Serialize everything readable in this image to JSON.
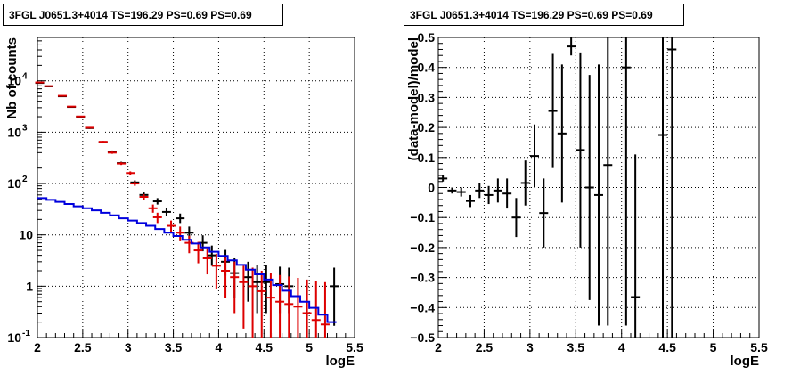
{
  "chart_data": [
    {
      "type": "scatter",
      "title": "3FGL J0651.3+4014 TS=196.29 PS=0.69 PS=0.69",
      "xlabel": "logE",
      "ylabel": "Nb of counts",
      "xlim": [
        2,
        5.5
      ],
      "ylim": [
        0.1,
        70000
      ],
      "yscale": "log",
      "grid": true,
      "x_ticks": [
        "2",
        "2.5",
        "3",
        "3.5",
        "4",
        "4.5",
        "5",
        "5.5"
      ],
      "y_ticks": [
        {
          "value": 0.1,
          "label": "10^-1"
        },
        {
          "value": 1,
          "label": "1"
        },
        {
          "value": 10,
          "label": "10"
        },
        {
          "value": 100,
          "label": "10^2"
        },
        {
          "value": 1000,
          "label": "10^3"
        },
        {
          "value": 10000,
          "label": "10^4"
        }
      ],
      "series": [
        {
          "style": "points",
          "color": "#000000",
          "points": [
            {
              "x": 2.025,
              "y": 9100,
              "lo": 8950,
              "hi": 9250
            },
            {
              "x": 2.125,
              "y": 7800,
              "lo": 7650,
              "hi": 7950
            },
            {
              "x": 2.275,
              "y": 5000,
              "lo": 4880,
              "hi": 5120
            },
            {
              "x": 2.375,
              "y": 3100,
              "lo": 3030,
              "hi": 3170
            },
            {
              "x": 2.475,
              "y": 2000,
              "lo": 1950,
              "hi": 2050
            },
            {
              "x": 2.575,
              "y": 1200,
              "lo": 1160,
              "hi": 1240
            },
            {
              "x": 2.725,
              "y": 640,
              "lo": 615,
              "hi": 665
            },
            {
              "x": 2.825,
              "y": 420,
              "lo": 400,
              "hi": 440
            },
            {
              "x": 2.925,
              "y": 250,
              "lo": 235,
              "hi": 265
            },
            {
              "x": 3.075,
              "y": 105,
              "lo": 95,
              "hi": 115
            },
            {
              "x": 3.175,
              "y": 60,
              "lo": 53,
              "hi": 67
            },
            {
              "x": 3.325,
              "y": 45,
              "lo": 39,
              "hi": 52
            },
            {
              "x": 3.425,
              "y": 28,
              "lo": 23,
              "hi": 34
            },
            {
              "x": 3.575,
              "y": 21,
              "lo": 17,
              "hi": 26
            },
            {
              "x": 3.675,
              "y": 11,
              "lo": 8,
              "hi": 14.5
            },
            {
              "x": 3.825,
              "y": 7,
              "lo": 4.8,
              "hi": 9.8
            },
            {
              "x": 3.925,
              "y": 4,
              "lo": 2.5,
              "hi": 6.2
            },
            {
              "x": 4.075,
              "y": 3,
              "lo": 1.6,
              "hi": 5.1
            },
            {
              "x": 4.175,
              "y": 1.8,
              "lo": 0.6,
              "hi": 3.5
            },
            {
              "x": 4.325,
              "y": 1.5,
              "lo": 0.5,
              "hi": 3.0
            },
            {
              "x": 4.425,
              "y": 1.2,
              "lo": 0.3,
              "hi": 2.6
            },
            {
              "x": 4.525,
              "y": 1.2,
              "lo": 0.3,
              "hi": 2.6
            },
            {
              "x": 4.675,
              "y": 1.1,
              "lo": 0.3,
              "hi": 2.4
            },
            {
              "x": 4.775,
              "y": 1.0,
              "lo": 0.3,
              "hi": 2.3
            },
            {
              "x": 5.275,
              "y": 1.0,
              "lo": 0.17,
              "hi": 2.3
            }
          ]
        },
        {
          "style": "points",
          "color": "#dd0000",
          "points": [
            {
              "x": 2.025,
              "y": 9300,
              "lo": 9150,
              "hi": 9450
            },
            {
              "x": 2.125,
              "y": 7900,
              "lo": 7750,
              "hi": 8050
            },
            {
              "x": 2.275,
              "y": 5100,
              "lo": 4980,
              "hi": 5220
            },
            {
              "x": 2.375,
              "y": 3150,
              "lo": 3080,
              "hi": 3220
            },
            {
              "x": 2.475,
              "y": 2020,
              "lo": 1970,
              "hi": 2070
            },
            {
              "x": 2.575,
              "y": 1220,
              "lo": 1180,
              "hi": 1260
            },
            {
              "x": 2.725,
              "y": 650,
              "lo": 625,
              "hi": 675
            },
            {
              "x": 2.825,
              "y": 400,
              "lo": 380,
              "hi": 420
            },
            {
              "x": 2.925,
              "y": 245,
              "lo": 230,
              "hi": 260
            },
            {
              "x": 3.025,
              "y": 160,
              "lo": 148,
              "hi": 172
            },
            {
              "x": 3.075,
              "y": 100,
              "lo": 90,
              "hi": 110
            },
            {
              "x": 3.175,
              "y": 55,
              "lo": 48,
              "hi": 62
            },
            {
              "x": 3.275,
              "y": 33,
              "lo": 27,
              "hi": 39
            },
            {
              "x": 3.325,
              "y": 22,
              "lo": 17,
              "hi": 27
            },
            {
              "x": 3.475,
              "y": 15,
              "lo": 11,
              "hi": 19
            },
            {
              "x": 3.575,
              "y": 11,
              "lo": 7.5,
              "hi": 14.5
            },
            {
              "x": 3.675,
              "y": 7,
              "lo": 4.4,
              "hi": 9.6
            },
            {
              "x": 3.775,
              "y": 5,
              "lo": 2.8,
              "hi": 7.3
            },
            {
              "x": 3.875,
              "y": 3.5,
              "lo": 1.7,
              "hi": 5.5
            },
            {
              "x": 3.975,
              "y": 2.5,
              "lo": 0.9,
              "hi": 4.3
            },
            {
              "x": 4.075,
              "y": 2.0,
              "lo": 0.6,
              "hi": 3.6
            },
            {
              "x": 4.175,
              "y": 1.5,
              "lo": 0.3,
              "hi": 3.0
            },
            {
              "x": 4.275,
              "y": 1.2,
              "lo": 0.15,
              "hi": 2.5
            },
            {
              "x": 4.375,
              "y": 1.0,
              "lo": 0.1,
              "hi": 2.3
            },
            {
              "x": 4.475,
              "y": 0.8,
              "lo": 0.1,
              "hi": 2.0
            },
            {
              "x": 4.575,
              "y": 0.6,
              "lo": 0.1,
              "hi": 1.8
            },
            {
              "x": 4.675,
              "y": 0.5,
              "lo": 0.1,
              "hi": 1.65
            },
            {
              "x": 4.775,
              "y": 0.45,
              "lo": 0.1,
              "hi": 1.55
            },
            {
              "x": 4.875,
              "y": 0.4,
              "lo": 0.1,
              "hi": 1.45
            },
            {
              "x": 4.975,
              "y": 0.3,
              "lo": 0.1,
              "hi": 1.35
            },
            {
              "x": 5.075,
              "y": 0.22,
              "lo": 0.1,
              "hi": 1.25
            },
            {
              "x": 5.175,
              "y": 0.18,
              "lo": 0.1,
              "hi": 1.2
            }
          ]
        },
        {
          "style": "step",
          "color": "#0000dd",
          "bins": [
            2.0,
            2.1,
            2.2,
            2.3,
            2.4,
            2.5,
            2.6,
            2.7,
            2.8,
            2.9,
            3.0,
            3.1,
            3.2,
            3.3,
            3.4,
            3.5,
            3.6,
            3.7,
            3.8,
            3.9,
            4.0,
            4.1,
            4.2,
            4.3,
            4.4,
            4.5,
            4.6,
            4.7,
            4.8,
            4.9,
            5.0,
            5.1,
            5.2,
            5.3
          ],
          "values": [
            52,
            48,
            44,
            40,
            36,
            33,
            30,
            27,
            24,
            21,
            19,
            17,
            15,
            13,
            11,
            9.5,
            8,
            6.8,
            5.7,
            4.7,
            3.9,
            3.2,
            2.6,
            2.1,
            1.7,
            1.35,
            1.05,
            0.82,
            0.64,
            0.5,
            0.38,
            0.28,
            0.2
          ]
        }
      ]
    },
    {
      "type": "scatter",
      "title": "3FGL J0651.3+4014 TS=196.29 PS=0.69 PS=0.69",
      "xlabel": "logE",
      "ylabel": "(data-model)/model",
      "xlim": [
        2,
        5.5
      ],
      "ylim": [
        -0.5,
        0.5
      ],
      "grid": true,
      "x_ticks": [
        "2",
        "2.5",
        "3",
        "3.5",
        "4",
        "4.5",
        "5",
        "5.5"
      ],
      "y_ticks": [
        "−0.5",
        "−0.4",
        "−0.3",
        "−0.2",
        "−0.1",
        "0",
        "0.1",
        "0.2",
        "0.3",
        "0.4",
        "0.5"
      ],
      "series": [
        {
          "style": "points",
          "color": "#000000",
          "points": [
            {
              "x": 2.05,
              "y": 0.03,
              "lo": 0.02,
              "hi": 0.04
            },
            {
              "x": 2.15,
              "y": -0.01,
              "lo": -0.02,
              "hi": 0.0
            },
            {
              "x": 2.25,
              "y": -0.015,
              "lo": -0.03,
              "hi": 0.0
            },
            {
              "x": 2.35,
              "y": -0.045,
              "lo": -0.065,
              "hi": -0.025
            },
            {
              "x": 2.45,
              "y": -0.01,
              "lo": -0.035,
              "hi": 0.015
            },
            {
              "x": 2.55,
              "y": -0.025,
              "lo": -0.055,
              "hi": 0.005
            },
            {
              "x": 2.65,
              "y": -0.01,
              "lo": -0.05,
              "hi": 0.03
            },
            {
              "x": 2.75,
              "y": -0.02,
              "lo": -0.07,
              "hi": 0.03
            },
            {
              "x": 2.85,
              "y": -0.1,
              "lo": -0.165,
              "hi": -0.035
            },
            {
              "x": 2.95,
              "y": 0.015,
              "lo": -0.06,
              "hi": 0.09
            },
            {
              "x": 3.05,
              "y": 0.105,
              "lo": 0.0,
              "hi": 0.21
            },
            {
              "x": 3.15,
              "y": -0.085,
              "lo": -0.2,
              "hi": 0.03
            },
            {
              "x": 3.25,
              "y": 0.255,
              "lo": 0.065,
              "hi": 0.445
            },
            {
              "x": 3.35,
              "y": 0.18,
              "lo": -0.05,
              "hi": 0.41
            },
            {
              "x": 3.45,
              "y": 0.47,
              "lo": 0.44,
              "hi": 0.5
            },
            {
              "x": 3.55,
              "y": 0.125,
              "lo": -0.2,
              "hi": 0.45
            },
            {
              "x": 3.65,
              "y": 0.0,
              "lo": -0.375,
              "hi": 0.375
            },
            {
              "x": 3.75,
              "y": -0.025,
              "lo": -0.46,
              "hi": 0.41
            },
            {
              "x": 3.85,
              "y": 0.075,
              "lo": -0.46,
              "hi": 0.5
            },
            {
              "x": 4.05,
              "y": 0.4,
              "lo": -0.46,
              "hi": 0.5
            },
            {
              "x": 4.15,
              "y": -0.365,
              "lo": -0.5,
              "hi": 0.11
            },
            {
              "x": 4.45,
              "y": 0.175,
              "lo": -0.5,
              "hi": 0.5
            },
            {
              "x": 4.55,
              "y": 0.46,
              "lo": -0.5,
              "hi": 0.5
            }
          ]
        }
      ]
    }
  ]
}
